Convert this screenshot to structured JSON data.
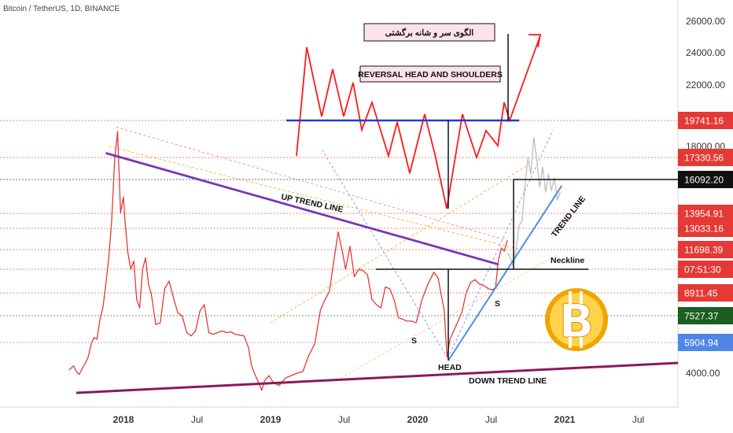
{
  "chart_data": {
    "type": "line",
    "title": "Bitcoin / TetherUS, 1D, BINANCE",
    "y_ticks": [
      4000,
      26000,
      24000,
      22000,
      18000
    ],
    "y_tick_labels": [
      "4000.00",
      "26000.00",
      "24000.00",
      "22000.00",
      "18000.00"
    ],
    "x_tick_labels": [
      "2018",
      "Jul",
      "2019",
      "Jul",
      "2020",
      "Jul",
      "2021",
      "Jul"
    ],
    "series": [
      {
        "values": [
          [
            2017.63,
            4200
          ],
          [
            2017.66,
            4450
          ],
          [
            2017.68,
            4100
          ],
          [
            2017.7,
            3950
          ],
          [
            2017.72,
            4300
          ],
          [
            2017.74,
            4600
          ],
          [
            2017.76,
            5000
          ],
          [
            2017.78,
            5800
          ],
          [
            2017.8,
            6200
          ],
          [
            2017.82,
            6100
          ],
          [
            2017.84,
            7300
          ],
          [
            2017.86,
            8000
          ],
          [
            2017.88,
            9500
          ],
          [
            2017.9,
            11200
          ],
          [
            2017.92,
            13500
          ],
          [
            2017.94,
            17200
          ],
          [
            2017.96,
            19000
          ],
          [
            2017.97,
            16500
          ],
          [
            2017.98,
            14000
          ],
          [
            2018.0,
            15000
          ],
          [
            2018.01,
            13500
          ],
          [
            2018.03,
            11500
          ],
          [
            2018.05,
            10500
          ],
          [
            2018.07,
            11000
          ],
          [
            2018.09,
            8500
          ],
          [
            2018.11,
            8000
          ],
          [
            2018.13,
            10500
          ],
          [
            2018.15,
            11200
          ],
          [
            2018.17,
            9500
          ],
          [
            2018.19,
            8800
          ],
          [
            2018.22,
            7000
          ],
          [
            2018.25,
            7100
          ],
          [
            2018.28,
            9200
          ],
          [
            2018.31,
            9700
          ],
          [
            2018.34,
            8600
          ],
          [
            2018.37,
            7700
          ],
          [
            2018.4,
            7500
          ],
          [
            2018.43,
            6500
          ],
          [
            2018.46,
            6300
          ],
          [
            2018.49,
            6600
          ],
          [
            2018.52,
            7800
          ],
          [
            2018.55,
            8200
          ],
          [
            2018.58,
            6500
          ],
          [
            2018.61,
            6400
          ],
          [
            2018.64,
            6500
          ],
          [
            2018.67,
            6600
          ],
          [
            2018.7,
            6500
          ],
          [
            2018.73,
            6550
          ],
          [
            2018.76,
            6400
          ],
          [
            2018.79,
            6350
          ],
          [
            2018.82,
            6300
          ],
          [
            2018.85,
            5600
          ],
          [
            2018.87,
            4500
          ],
          [
            2018.89,
            4000
          ],
          [
            2018.92,
            3600
          ],
          [
            2018.94,
            3300
          ],
          [
            2018.96,
            3700
          ],
          [
            2018.99,
            3900
          ],
          [
            2019.02,
            3600
          ],
          [
            2019.06,
            3500
          ],
          [
            2019.1,
            3800
          ],
          [
            2019.14,
            3900
          ],
          [
            2019.18,
            4000
          ],
          [
            2019.22,
            4100
          ],
          [
            2019.26,
            5100
          ],
          [
            2019.3,
            5800
          ],
          [
            2019.34,
            7900
          ],
          [
            2019.37,
            8500
          ],
          [
            2019.4,
            9000
          ],
          [
            2019.43,
            11000
          ],
          [
            2019.46,
            12800
          ],
          [
            2019.49,
            11500
          ],
          [
            2019.51,
            10500
          ],
          [
            2019.54,
            11900
          ],
          [
            2019.57,
            10000
          ],
          [
            2019.6,
            10500
          ],
          [
            2019.63,
            10400
          ],
          [
            2019.66,
            10100
          ],
          [
            2019.69,
            8500
          ],
          [
            2019.72,
            8200
          ],
          [
            2019.75,
            8000
          ],
          [
            2019.78,
            9300
          ],
          [
            2019.81,
            9200
          ],
          [
            2019.84,
            8500
          ],
          [
            2019.87,
            7400
          ],
          [
            2019.9,
            7300
          ],
          [
            2019.93,
            7200
          ],
          [
            2019.96,
            7200
          ],
          [
            2019.99,
            7100
          ],
          [
            2020.03,
            8500
          ],
          [
            2020.07,
            9500
          ],
          [
            2020.11,
            10300
          ],
          [
            2020.14,
            9900
          ],
          [
            2020.16,
            8800
          ],
          [
            2020.18,
            7900
          ],
          [
            2020.2,
            5000
          ],
          [
            2020.22,
            6100
          ],
          [
            2020.24,
            6500
          ],
          [
            2020.27,
            7100
          ],
          [
            2020.3,
            7700
          ],
          [
            2020.33,
            8900
          ],
          [
            2020.36,
            9600
          ],
          [
            2020.39,
            9800
          ],
          [
            2020.42,
            9500
          ],
          [
            2020.45,
            9400
          ],
          [
            2020.48,
            9200
          ],
          [
            2020.51,
            9100
          ],
          [
            2020.53,
            9300
          ],
          [
            2020.55,
            11100
          ],
          [
            2020.57,
            11800
          ],
          [
            2020.59,
            11600
          ],
          [
            2020.61,
            12300
          ]
        ],
        "color": "#e53935"
      },
      {
        "values": [
          [
            2020.61,
            11500
          ],
          [
            2020.63,
            11200
          ],
          [
            2020.65,
            10700
          ],
          [
            2020.67,
            11800
          ],
          [
            2020.69,
            13200
          ],
          [
            2020.71,
            13500
          ],
          [
            2020.73,
            15700
          ],
          [
            2020.75,
            17300
          ],
          [
            2020.77,
            16400
          ],
          [
            2020.79,
            18600
          ],
          [
            2020.81,
            17200
          ],
          [
            2020.83,
            15600
          ],
          [
            2020.85,
            16800
          ],
          [
            2020.87,
            15300
          ],
          [
            2020.89,
            16400
          ],
          [
            2020.91,
            15400
          ],
          [
            2020.93,
            16200
          ],
          [
            2020.95,
            14800
          ],
          [
            2020.97,
            15300
          ]
        ],
        "color": "#bdbdbd"
      }
    ],
    "price_labels": [
      {
        "value": 19741.16,
        "text": "19741.16",
        "color": "#e53935"
      },
      {
        "value": 17330.56,
        "text": "17330.56",
        "color": "#e53935"
      },
      {
        "value": 16092.2,
        "text": "16092.20",
        "color": "#111111"
      },
      {
        "value": 13954.91,
        "text": "13954.91",
        "color": "#e53935"
      },
      {
        "value": 13033.16,
        "text": "13033.16",
        "color": "#e53935"
      },
      {
        "value": 11698.39,
        "text": "11698.39",
        "color": "#e53935"
      },
      {
        "value": 10500,
        "text": "07:51:30",
        "color": "#e53935"
      },
      {
        "value": 8911.45,
        "text": "8911.45",
        "color": "#e53935"
      },
      {
        "value": 7527.37,
        "text": "7527.37",
        "color": "#1b5e20"
      },
      {
        "value": 5904.94,
        "text": "5904.94",
        "color": "#4f86e8"
      }
    ],
    "annotations": {
      "persian_title": "الگوی سر و شانه برگشتی",
      "english_title": "REVERSAL HEAD AND SHOULDERS",
      "up_trend_line": "UP TREND LINE",
      "trend_line": "TREND LINE",
      "neckline": "Neckline",
      "shoulder_left": "S",
      "shoulder_right": "S",
      "head": "HEAD",
      "down_trend_line": "DOWN TREND LINE"
    }
  }
}
